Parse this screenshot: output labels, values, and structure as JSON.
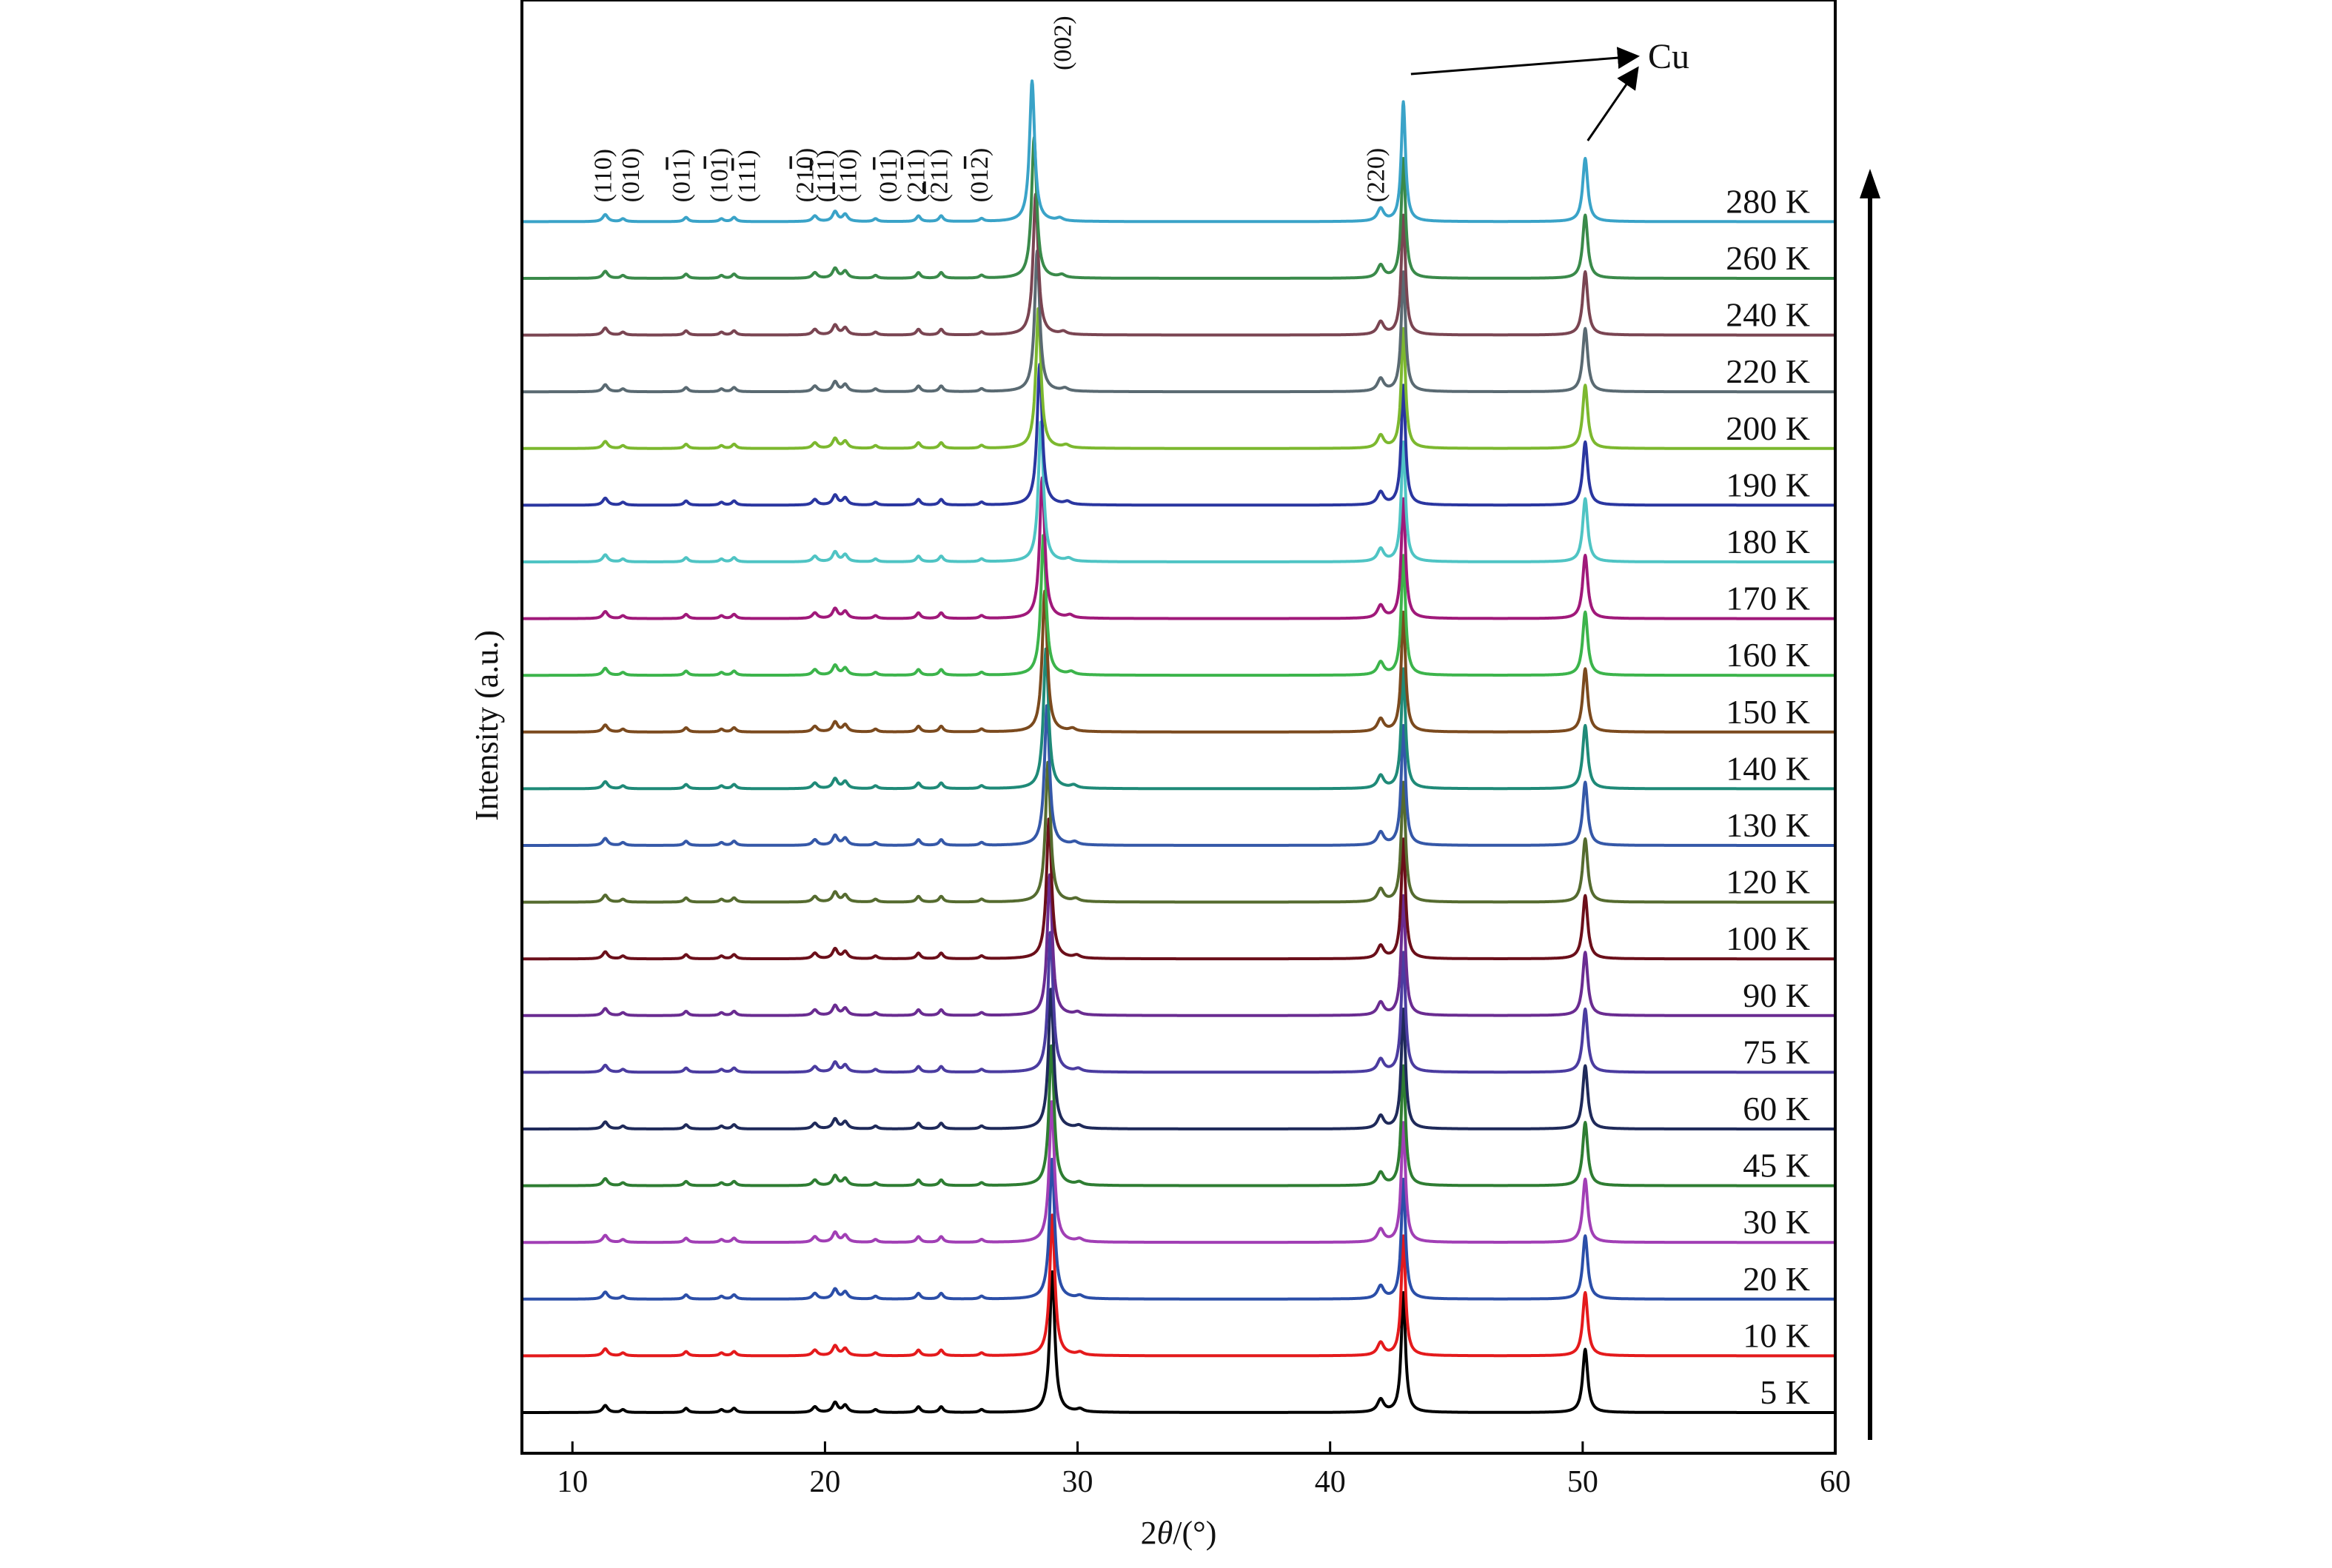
{
  "chart_data": {
    "type": "line",
    "title": "",
    "xlabel_prefix": "2",
    "xlabel_theta": "θ",
    "xlabel_suffix": "/(°)",
    "ylabel": "Intensity (a.u.)",
    "xlim": [
      8,
      60
    ],
    "xticks": [
      10,
      20,
      30,
      40,
      50,
      60
    ],
    "y_scale": "offset-stacked, arbitrary units",
    "grid": false,
    "legend": "series labels printed at right end of each trace",
    "peaks": [
      {
        "x": 11.3,
        "h": 0.05,
        "w": 0.12
      },
      {
        "x": 12.0,
        "h": 0.02,
        "w": 0.1
      },
      {
        "x": 14.5,
        "h": 0.03,
        "w": 0.1
      },
      {
        "x": 15.9,
        "h": 0.02,
        "w": 0.1
      },
      {
        "x": 16.4,
        "h": 0.03,
        "w": 0.1
      },
      {
        "x": 19.6,
        "h": 0.04,
        "w": 0.12
      },
      {
        "x": 20.4,
        "h": 0.07,
        "w": 0.12
      },
      {
        "x": 20.8,
        "h": 0.05,
        "w": 0.12
      },
      {
        "x": 22.0,
        "h": 0.02,
        "w": 0.1
      },
      {
        "x": 23.7,
        "h": 0.04,
        "w": 0.1
      },
      {
        "x": 24.6,
        "h": 0.04,
        "w": 0.1
      },
      {
        "x": 26.2,
        "h": 0.02,
        "w": 0.1
      },
      {
        "x": 29.0,
        "h": 1.0,
        "w": 0.12
      },
      {
        "x": 30.1,
        "h": 0.02,
        "w": 0.15
      },
      {
        "x": 42.0,
        "h": 0.09,
        "w": 0.15
      },
      {
        "x": 42.9,
        "h": 0.85,
        "w": 0.1
      },
      {
        "x": 50.1,
        "h": 0.45,
        "w": 0.12
      }
    ],
    "series": [
      {
        "name": "5 K",
        "color": "#000000",
        "shift": 0.0
      },
      {
        "name": "10 K",
        "color": "#e41a1c",
        "shift": 0.0
      },
      {
        "name": "20 K",
        "color": "#2b4ea8",
        "shift": -0.01
      },
      {
        "name": "30 K",
        "color": "#a13fb5",
        "shift": -0.02
      },
      {
        "name": "45 K",
        "color": "#2e7d32",
        "shift": -0.03
      },
      {
        "name": "60 K",
        "color": "#1f2a5a",
        "shift": -0.05
      },
      {
        "name": "75 K",
        "color": "#4b3ca0",
        "shift": -0.07
      },
      {
        "name": "90 K",
        "color": "#6a2c91",
        "shift": -0.1
      },
      {
        "name": "100 K",
        "color": "#6b0f1a",
        "shift": -0.13
      },
      {
        "name": "120 K",
        "color": "#556b2f",
        "shift": -0.17
      },
      {
        "name": "130 K",
        "color": "#3558a8",
        "shift": -0.21
      },
      {
        "name": "140 K",
        "color": "#1f8a78",
        "shift": -0.25
      },
      {
        "name": "150 K",
        "color": "#7b4a1e",
        "shift": -0.3
      },
      {
        "name": "160 K",
        "color": "#3cb44b",
        "shift": -0.35
      },
      {
        "name": "170 K",
        "color": "#a0197a",
        "shift": -0.4
      },
      {
        "name": "180 K",
        "color": "#4fc4c4",
        "shift": -0.45
      },
      {
        "name": "190 K",
        "color": "#2a36a0",
        "shift": -0.5
      },
      {
        "name": "200 K",
        "color": "#7cb82f",
        "shift": -0.55
      },
      {
        "name": "220 K",
        "color": "#5a6a72",
        "shift": -0.6
      },
      {
        "name": "240 K",
        "color": "#7a4552",
        "shift": -0.66
      },
      {
        "name": "260 K",
        "color": "#3a8a4a",
        "shift": -0.72
      },
      {
        "name": "280 K",
        "color": "#3aa3c8",
        "shift": -0.8
      }
    ],
    "annotations": {
      "hkl_left": [
        {
          "x": 11.3,
          "label": "(110)"
        },
        {
          "x": 12.4,
          "label": "(010)"
        },
        {
          "x": 14.4,
          "label": "(01",
          "over": "1",
          "end": ")"
        },
        {
          "x": 15.9,
          "label": "(10",
          "over": "1",
          "end": ")"
        },
        {
          "x": 17.0,
          "label": "(11",
          "over": "1",
          "end": ")"
        },
        {
          "x": 19.3,
          "label": "(21",
          "over": "0",
          "end": ")"
        },
        {
          "x": 20.1,
          "label": "(11",
          "over": "1",
          "end": ")"
        },
        {
          "x": 21.0,
          "label": "(",
          "over": "1",
          "end": "10)"
        },
        {
          "x": 22.6,
          "label": "(01",
          "over": "1",
          "end": ")"
        },
        {
          "x": 23.7,
          "label": "(21",
          "over": "1",
          "end": ")"
        },
        {
          "x": 24.6,
          "label": "(",
          "over": "2",
          "end": "11)"
        },
        {
          "x": 26.2,
          "label": "(01",
          "over": "2",
          "end": ")"
        }
      ],
      "peak_002": {
        "x": 29.5,
        "label": "(002)"
      },
      "peak_220": {
        "x": 41.9,
        "label": "(220)"
      },
      "cu_label": "Cu",
      "arrow_direction": "increasing temperature"
    }
  }
}
